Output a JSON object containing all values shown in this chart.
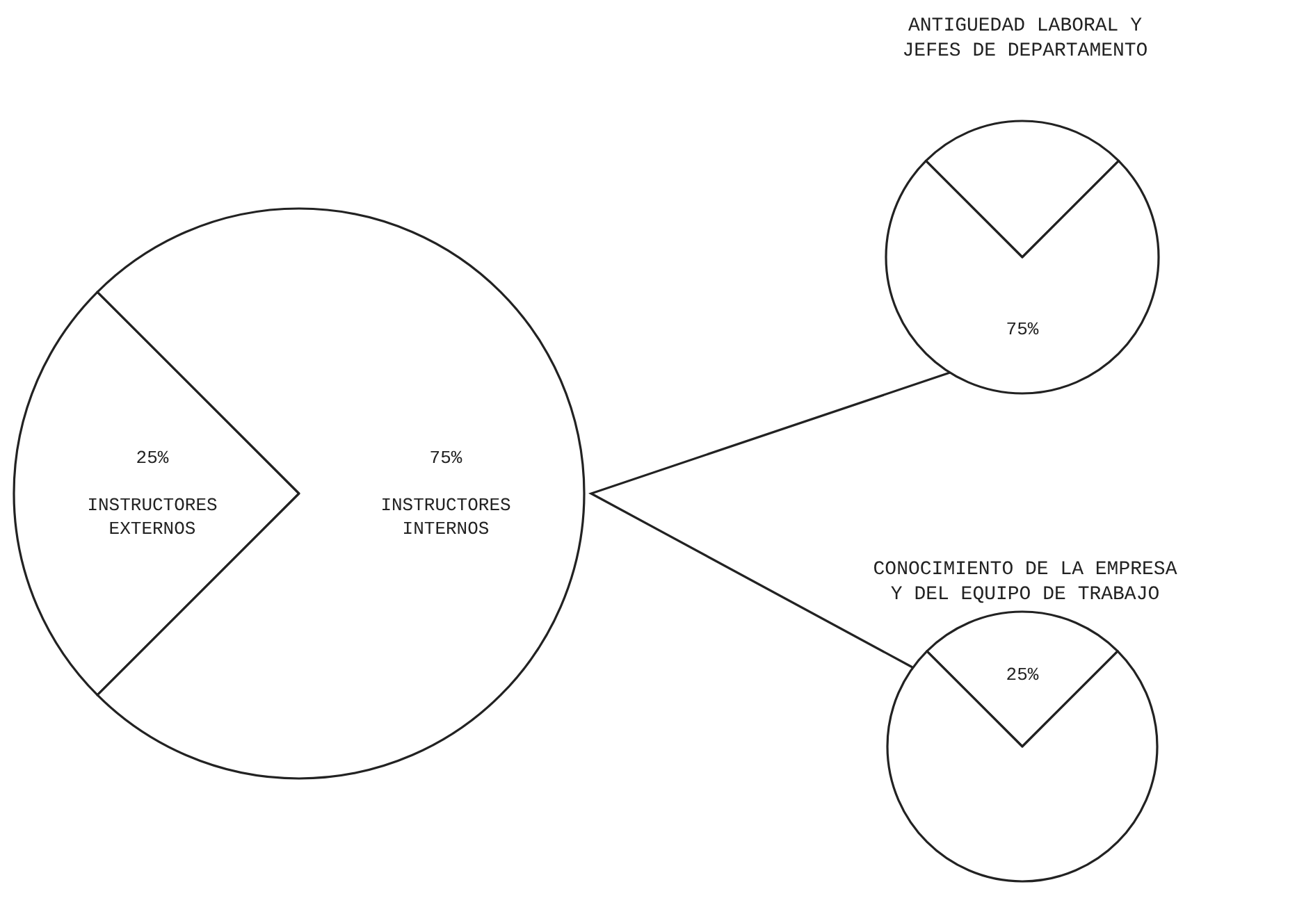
{
  "chart_data": [
    {
      "type": "pie",
      "categories": [
        "INSTRUCTORES EXTERNOS",
        "INSTRUCTORES INTERNOS"
      ],
      "values": [
        25,
        75
      ],
      "value_labels": [
        "25%",
        "75%"
      ],
      "colors": [
        "#ffffff",
        "#ffffff"
      ],
      "legend": false
    },
    {
      "type": "pie",
      "title": "ANTIGUEDAD LABORAL Y\nJEFES DE DEPARTAMENTO",
      "categories": [
        null,
        null
      ],
      "values": [
        25,
        75
      ],
      "value_labels": [
        null,
        "75%"
      ],
      "colors": [
        "#ffffff",
        "#ffffff"
      ],
      "legend": false
    },
    {
      "type": "pie",
      "title": "CONOCIMIENTO DE LA EMPRESA\nY DEL EQUIPO DE TRABAJO",
      "categories": [
        null,
        null
      ],
      "values": [
        25,
        75
      ],
      "value_labels": [
        "25%",
        null
      ],
      "colors": [
        "#ffffff",
        "#ffffff"
      ],
      "legend": false
    }
  ]
}
